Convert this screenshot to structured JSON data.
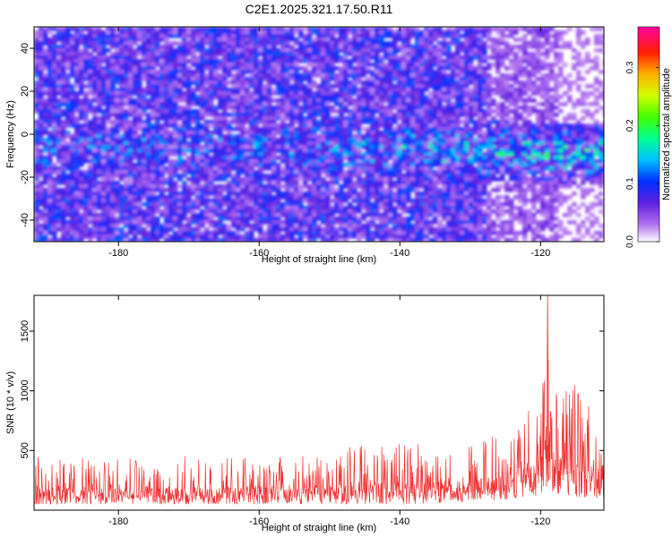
{
  "figure": {
    "title": "C2E1.2025.321.17.50.R11"
  },
  "chart_data": [
    {
      "type": "heatmap",
      "xlabel": "Height of straight line (km)",
      "ylabel": "Frequency (Hz)",
      "xlim": [
        -192,
        -111
      ],
      "ylim": [
        -50,
        50
      ],
      "x_ticks": [
        "-180",
        "-160",
        "-140",
        "-120"
      ],
      "y_ticks": [
        "-40",
        "-20",
        "0",
        "20",
        "40"
      ],
      "colorbar": {
        "label": "Normalized spectral amplitude",
        "range": [
          0.0,
          0.37
        ],
        "ticks": [
          "0.0",
          "0.1",
          "0.2",
          "0.3"
        ],
        "colormap": [
          "#ffffff",
          "#9a3cf0",
          "#4010e0",
          "#0050ff",
          "#00e0ff",
          "#00ff60",
          "#c0ff00",
          "#ffb000",
          "#ff2000",
          "#ff0090"
        ]
      },
      "features": {
        "signal_trace_start": [
          -192,
          -4
        ],
        "signal_trace_end": [
          -111,
          -8
        ],
        "peak_region_x": [
          -124,
          -113
        ]
      }
    },
    {
      "type": "line",
      "xlabel": "Height of straight line (km)",
      "ylabel": "SNR (10 * v/v)",
      "xlim": [
        -192,
        -111
      ],
      "ylim": [
        0,
        1800
      ],
      "x_ticks": [
        "-180",
        "-160",
        "-140",
        "-120"
      ],
      "y_ticks": [
        "500",
        "1000",
        "1500"
      ],
      "color": "#f03030",
      "series": [
        {
          "x": [
            -192,
            -180,
            -170,
            -160,
            -150,
            -140,
            -133,
            -127,
            -123,
            -120,
            -119,
            -117,
            -115,
            -113,
            -111
          ],
          "low": [
            50,
            50,
            50,
            50,
            50,
            50,
            60,
            80,
            100,
            120,
            150,
            130,
            110,
            100,
            100
          ],
          "high": [
            450,
            430,
            460,
            480,
            520,
            560,
            580,
            650,
            800,
            900,
            1800,
            1000,
            1080,
            900,
            700
          ]
        }
      ]
    }
  ]
}
